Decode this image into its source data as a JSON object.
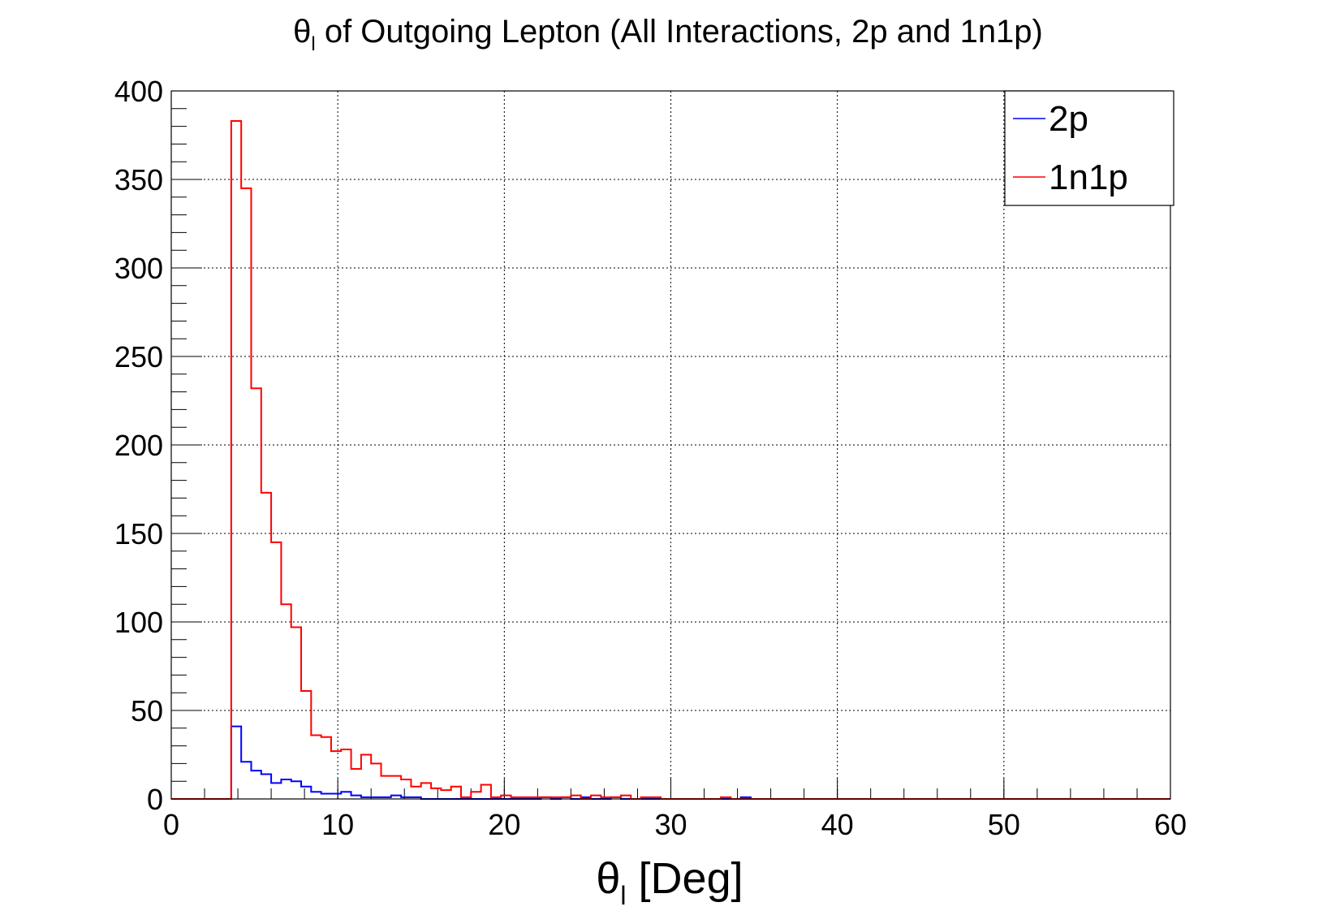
{
  "chart_data": {
    "type": "histogram",
    "title": {
      "main": "θ",
      "sub": "l",
      "rest": " of Outgoing Lepton (All Interactions, 2p and 1n1p)"
    },
    "xlabel": {
      "main": "θ",
      "sub": "l",
      "rest": " [Deg]"
    },
    "ylabel": "",
    "xlim": [
      0,
      60
    ],
    "ylim": [
      0,
      400
    ],
    "x_ticks": [
      0,
      10,
      20,
      30,
      40,
      50,
      60
    ],
    "y_ticks": [
      0,
      50,
      100,
      150,
      200,
      250,
      300,
      350,
      400
    ],
    "grid": true,
    "legend_position": "top-right",
    "bin_width": 0.6,
    "bin_start": 0,
    "series": [
      {
        "name": "2p",
        "color": "#0000ff",
        "values": [
          0,
          0,
          0,
          0,
          0,
          0,
          41,
          21,
          16,
          14,
          9,
          11,
          10,
          7,
          4,
          3,
          3,
          4,
          2,
          1,
          1,
          1,
          2,
          1,
          1,
          0,
          0,
          0,
          0,
          0,
          0,
          0,
          0,
          0,
          0,
          0,
          0,
          1,
          0,
          1,
          0,
          1,
          0,
          0,
          1,
          0,
          0,
          0,
          0,
          0,
          0,
          0,
          0,
          0,
          0,
          0,
          0,
          1,
          0,
          0,
          0,
          0,
          0,
          0,
          0,
          0,
          0,
          0,
          0,
          0,
          0,
          0,
          0,
          0,
          0,
          0,
          0,
          0,
          0,
          0,
          0,
          0,
          0,
          0,
          0,
          0,
          0,
          0,
          0,
          0,
          0,
          0,
          0,
          0,
          0,
          0,
          0,
          0,
          0,
          0
        ]
      },
      {
        "name": "1n1p",
        "color": "#ff0000",
        "values": [
          0,
          0,
          0,
          0,
          0,
          0,
          383,
          345,
          232,
          173,
          145,
          110,
          97,
          61,
          36,
          35,
          27,
          28,
          17,
          25,
          20,
          13,
          13,
          11,
          7,
          9,
          6,
          5,
          7,
          1,
          4,
          8,
          1,
          2,
          1,
          1,
          1,
          1,
          1,
          1,
          2,
          0,
          2,
          1,
          1,
          2,
          0,
          1,
          1,
          0,
          0,
          0,
          0,
          0,
          0,
          1,
          0,
          0,
          0,
          0,
          0,
          0,
          0,
          0,
          0,
          0,
          0,
          0,
          0,
          0,
          0,
          0,
          0,
          0,
          0,
          0,
          0,
          0,
          0,
          0,
          0,
          0,
          0,
          0,
          0,
          0,
          0,
          0,
          0,
          0,
          0,
          0,
          0,
          0,
          0,
          0,
          0,
          0,
          0,
          0
        ]
      }
    ]
  }
}
